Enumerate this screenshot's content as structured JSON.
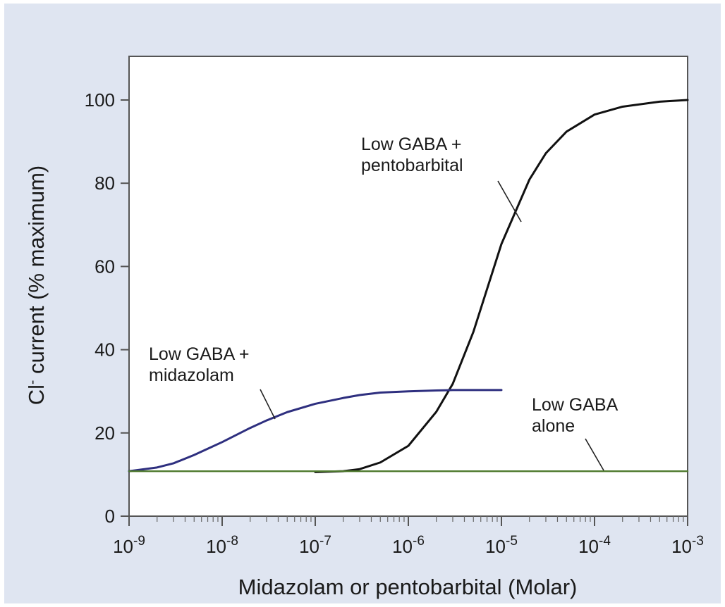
{
  "chart_data": {
    "type": "line",
    "x_scale": "log",
    "xlim": [
      1e-09,
      0.001
    ],
    "ylim": [
      0,
      100
    ],
    "xlabel": "Midazolam or pentobarbital (Molar)",
    "ylabel_parts": [
      "Cl",
      "-",
      " current (% maximum)"
    ],
    "x_ticks": [
      {
        "base": "10",
        "exp": "-9",
        "value": 1e-09
      },
      {
        "base": "10",
        "exp": "-8",
        "value": 1e-08
      },
      {
        "base": "10",
        "exp": "-7",
        "value": 1e-07
      },
      {
        "base": "10",
        "exp": "-6",
        "value": 1e-06
      },
      {
        "base": "10",
        "exp": "-5",
        "value": 1e-05
      },
      {
        "base": "10",
        "exp": "-4",
        "value": 0.0001
      },
      {
        "base": "10",
        "exp": "-3",
        "value": 0.001
      }
    ],
    "y_ticks": [
      0,
      20,
      40,
      60,
      80,
      100
    ],
    "grid": false,
    "legend": "none",
    "series": [
      {
        "name_lines": [
          "Low GABA +",
          "pentobarbital"
        ],
        "color": "#111111",
        "x": [
          1e-07,
          2e-07,
          3e-07,
          5e-07,
          1e-06,
          2e-06,
          3e-06,
          5e-06,
          1e-05,
          2e-05,
          3e-05,
          5e-05,
          0.0001,
          0.0002,
          0.0005,
          0.001
        ],
        "y": [
          10.6,
          10.8,
          11.3,
          12.9,
          16.9,
          25.1,
          31.8,
          44.3,
          65.4,
          80.9,
          87.2,
          92.4,
          96.5,
          98.4,
          99.6,
          100
        ]
      },
      {
        "name_lines": [
          "Low GABA +",
          "midazolam"
        ],
        "color": "#2e2f7f",
        "x": [
          1e-09,
          2e-09,
          3e-09,
          5e-09,
          1e-08,
          2e-08,
          3e-08,
          5e-08,
          1e-07,
          2e-07,
          3e-07,
          5e-07,
          1e-06,
          2e-06,
          3e-06,
          5e-06,
          1e-05
        ],
        "y": [
          10.8,
          11.7,
          12.7,
          14.7,
          17.8,
          21.2,
          23.0,
          25.0,
          27.0,
          28.4,
          29.1,
          29.7,
          30.0,
          30.2,
          30.3,
          30.3,
          30.3
        ]
      },
      {
        "name_lines": [
          "Low GABA",
          "alone"
        ],
        "color": "#4f7a2e",
        "x": [
          1e-09,
          0.001
        ],
        "y": [
          10.8,
          10.8
        ]
      }
    ]
  }
}
